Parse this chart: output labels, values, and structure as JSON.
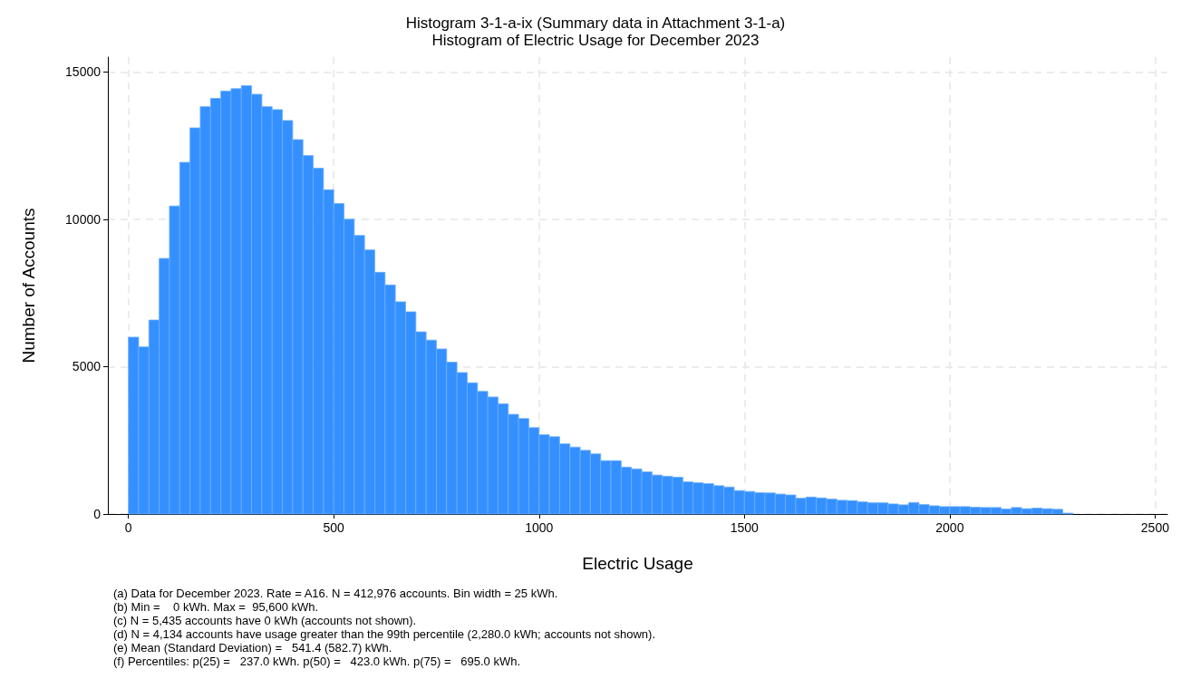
{
  "chart_data": {
    "type": "histogram",
    "title": "Histogram 3-1-a-ix (Summary data in Attachment 3-1-a)",
    "subtitle": "Histogram of Electric Usage for December 2023",
    "xlabel": "Electric Usage",
    "ylabel": "Number of Accounts",
    "bins": [
      0,
      25,
      50,
      75,
      100,
      125,
      150,
      175,
      200,
      225,
      250,
      275,
      300,
      325,
      350,
      375,
      400,
      425,
      450,
      475,
      500,
      525,
      550,
      575,
      600,
      625,
      650,
      675,
      700,
      725,
      750,
      775,
      800,
      825,
      850,
      875,
      900,
      925,
      950,
      975,
      1000,
      1025,
      1050,
      1075,
      1100,
      1125,
      1150,
      1175,
      1200,
      1225,
      1250,
      1275,
      1300,
      1325,
      1350,
      1375,
      1400,
      1425,
      1450,
      1475,
      1500,
      1525,
      1550,
      1575,
      1600,
      1625,
      1650,
      1675,
      1700,
      1725,
      1750,
      1775,
      1800,
      1825,
      1850,
      1875,
      1900,
      1925,
      1950,
      1975,
      2000,
      2025,
      2050,
      2075,
      2100,
      2125,
      2150,
      2175,
      2200,
      2225,
      2250,
      2275,
      2300
    ],
    "values": [
      6000,
      5670,
      6580,
      8670,
      10450,
      11930,
      13100,
      13820,
      14100,
      14350,
      14430,
      14530,
      14240,
      13820,
      13720,
      13350,
      12700,
      12160,
      11730,
      11000,
      10530,
      10000,
      9450,
      8960,
      8200,
      7770,
      7200,
      6860,
      6180,
      5900,
      5600,
      5150,
      4800,
      4450,
      4160,
      3970,
      3740,
      3380,
      3240,
      2930,
      2690,
      2620,
      2380,
      2270,
      2160,
      2040,
      1810,
      1810,
      1590,
      1530,
      1430,
      1320,
      1280,
      1250,
      1090,
      1060,
      1030,
      960,
      915,
      795,
      765,
      725,
      715,
      675,
      645,
      535,
      575,
      545,
      505,
      465,
      455,
      410,
      380,
      380,
      340,
      310,
      390,
      320,
      280,
      250,
      250,
      250,
      230,
      220,
      220,
      170,
      220,
      180,
      200,
      180,
      160,
      30
    ],
    "color": "#3590ff",
    "xlim": [
      -50,
      2530
    ],
    "xticks": [
      0,
      500,
      1000,
      1500,
      2000,
      2500
    ],
    "ylim": [
      0,
      15500
    ],
    "yticks": [
      0,
      5000,
      10000,
      15000
    ],
    "grid": true,
    "annotations": [
      "(a) Data for December 2023. Rate = A16. N = 412,976 accounts. Bin width = 25 kWh.",
      "(b) Min =    0 kWh. Max =  95,600 kWh.",
      "(c) N = 5,435 accounts have 0 kWh (accounts not shown).",
      "(d) N = 4,134 accounts have usage greater than the 99th percentile (2,280.0 kWh; accounts not shown).",
      "(e) Mean (Standard Deviation) =   541.4 (582.7) kWh.",
      "(f) Percentiles: p(25) =   237.0 kWh. p(50) =   423.0 kWh. p(75) =   695.0 kWh."
    ]
  }
}
